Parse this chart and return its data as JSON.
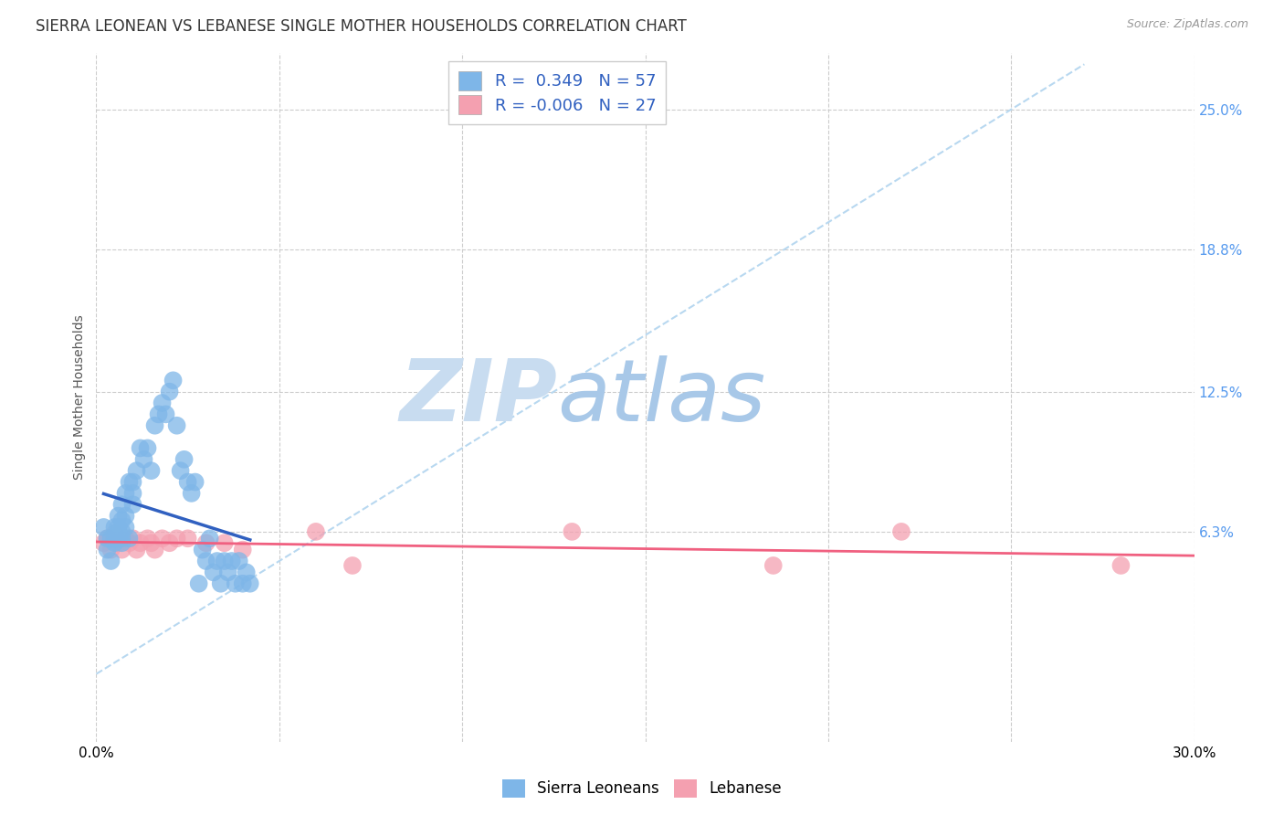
{
  "title": "SIERRA LEONEAN VS LEBANESE SINGLE MOTHER HOUSEHOLDS CORRELATION CHART",
  "source": "Source: ZipAtlas.com",
  "ylabel": "Single Mother Households",
  "xlim": [
    0.0,
    0.3
  ],
  "ylim": [
    -0.03,
    0.275
  ],
  "xtick_positions": [
    0.0,
    0.05,
    0.1,
    0.15,
    0.2,
    0.25,
    0.3
  ],
  "xtick_labels": [
    "0.0%",
    "",
    "",
    "",
    "",
    "",
    "30.0%"
  ],
  "right_yticks": [
    0.063,
    0.125,
    0.188,
    0.25
  ],
  "right_ytick_labels": [
    "6.3%",
    "12.5%",
    "18.8%",
    "25.0%"
  ],
  "sierra_r": "0.349",
  "sierra_n": "57",
  "lebanese_r": "-0.006",
  "lebanese_n": "27",
  "sierra_color": "#7EB6E8",
  "lebanese_color": "#F4A0B0",
  "sierra_line_color": "#3060C0",
  "lebanese_line_color": "#F06080",
  "trendline_color": "#B8D8F0",
  "background_color": "#FFFFFF",
  "watermark_zip": "ZIP",
  "watermark_atlas": "atlas",
  "watermark_color_zip": "#C8DCF0",
  "watermark_color_atlas": "#A8C8E8",
  "legend_text_color": "#3060C0",
  "title_fontsize": 12,
  "sierra_points_x": [
    0.002,
    0.003,
    0.003,
    0.004,
    0.004,
    0.005,
    0.005,
    0.005,
    0.006,
    0.006,
    0.006,
    0.006,
    0.007,
    0.007,
    0.007,
    0.007,
    0.007,
    0.008,
    0.008,
    0.008,
    0.009,
    0.009,
    0.01,
    0.01,
    0.01,
    0.011,
    0.012,
    0.013,
    0.014,
    0.015,
    0.016,
    0.017,
    0.018,
    0.019,
    0.02,
    0.021,
    0.022,
    0.023,
    0.024,
    0.025,
    0.026,
    0.027,
    0.028,
    0.029,
    0.03,
    0.031,
    0.032,
    0.033,
    0.034,
    0.035,
    0.036,
    0.037,
    0.038,
    0.039,
    0.04,
    0.041,
    0.042
  ],
  "sierra_points_y": [
    0.065,
    0.06,
    0.055,
    0.06,
    0.05,
    0.058,
    0.06,
    0.065,
    0.06,
    0.063,
    0.07,
    0.065,
    0.06,
    0.058,
    0.063,
    0.068,
    0.075,
    0.065,
    0.07,
    0.08,
    0.085,
    0.06,
    0.075,
    0.08,
    0.085,
    0.09,
    0.1,
    0.095,
    0.1,
    0.09,
    0.11,
    0.115,
    0.12,
    0.115,
    0.125,
    0.13,
    0.11,
    0.09,
    0.095,
    0.085,
    0.08,
    0.085,
    0.04,
    0.055,
    0.05,
    0.06,
    0.045,
    0.05,
    0.04,
    0.05,
    0.045,
    0.05,
    0.04,
    0.05,
    0.04,
    0.045,
    0.04
  ],
  "lebanese_points_x": [
    0.002,
    0.003,
    0.004,
    0.005,
    0.006,
    0.007,
    0.008,
    0.009,
    0.01,
    0.011,
    0.012,
    0.014,
    0.015,
    0.016,
    0.018,
    0.02,
    0.022,
    0.025,
    0.03,
    0.035,
    0.04,
    0.06,
    0.07,
    0.13,
    0.185,
    0.22,
    0.28
  ],
  "lebanese_points_y": [
    0.058,
    0.06,
    0.055,
    0.062,
    0.058,
    0.055,
    0.06,
    0.058,
    0.06,
    0.055,
    0.058,
    0.06,
    0.058,
    0.055,
    0.06,
    0.058,
    0.06,
    0.06,
    0.058,
    0.058,
    0.055,
    0.063,
    0.048,
    0.063,
    0.048,
    0.063,
    0.048
  ]
}
